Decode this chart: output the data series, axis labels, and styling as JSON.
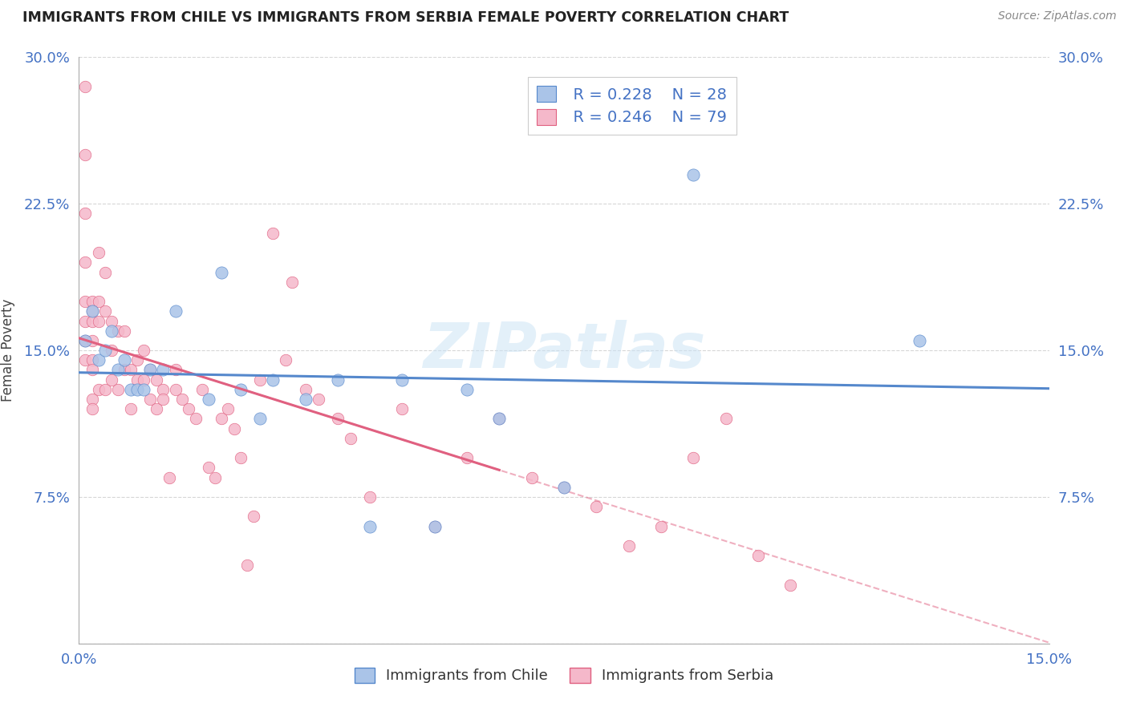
{
  "title": "IMMIGRANTS FROM CHILE VS IMMIGRANTS FROM SERBIA FEMALE POVERTY CORRELATION CHART",
  "source": "Source: ZipAtlas.com",
  "ylabel": "Female Poverty",
  "xlim": [
    0.0,
    0.15
  ],
  "ylim": [
    0.0,
    0.3
  ],
  "xticks": [
    0.0,
    0.05,
    0.1,
    0.15
  ],
  "xtick_labels": [
    "0.0%",
    "",
    "",
    "15.0%"
  ],
  "yticks": [
    0.0,
    0.075,
    0.15,
    0.225,
    0.3
  ],
  "ytick_labels": [
    "",
    "7.5%",
    "15.0%",
    "22.5%",
    "30.0%"
  ],
  "legend_r_chile": "R = 0.228",
  "legend_n_chile": "N = 28",
  "legend_r_serbia": "R = 0.246",
  "legend_n_serbia": "N = 79",
  "color_chile": "#aac4e8",
  "color_serbia": "#f5b8ca",
  "line_color_chile": "#5588cc",
  "line_color_serbia": "#e06080",
  "text_color_blue": "#4472c4",
  "watermark": "ZIPatlas",
  "chile_x": [
    0.001,
    0.002,
    0.003,
    0.004,
    0.005,
    0.006,
    0.007,
    0.008,
    0.009,
    0.01,
    0.011,
    0.013,
    0.015,
    0.02,
    0.022,
    0.025,
    0.028,
    0.03,
    0.035,
    0.04,
    0.045,
    0.05,
    0.055,
    0.06,
    0.065,
    0.075,
    0.095,
    0.13
  ],
  "chile_y": [
    0.155,
    0.17,
    0.145,
    0.15,
    0.16,
    0.14,
    0.145,
    0.13,
    0.13,
    0.13,
    0.14,
    0.14,
    0.17,
    0.125,
    0.19,
    0.13,
    0.115,
    0.135,
    0.125,
    0.135,
    0.06,
    0.135,
    0.06,
    0.13,
    0.115,
    0.08,
    0.24,
    0.155
  ],
  "serbia_x": [
    0.001,
    0.001,
    0.001,
    0.001,
    0.001,
    0.001,
    0.001,
    0.001,
    0.002,
    0.002,
    0.002,
    0.002,
    0.002,
    0.002,
    0.002,
    0.002,
    0.003,
    0.003,
    0.003,
    0.003,
    0.004,
    0.004,
    0.004,
    0.005,
    0.005,
    0.005,
    0.006,
    0.006,
    0.007,
    0.007,
    0.008,
    0.008,
    0.009,
    0.009,
    0.01,
    0.01,
    0.011,
    0.011,
    0.012,
    0.012,
    0.013,
    0.013,
    0.014,
    0.015,
    0.015,
    0.016,
    0.017,
    0.018,
    0.019,
    0.02,
    0.021,
    0.022,
    0.023,
    0.024,
    0.025,
    0.026,
    0.027,
    0.028,
    0.03,
    0.032,
    0.033,
    0.035,
    0.037,
    0.04,
    0.042,
    0.045,
    0.05,
    0.055,
    0.06,
    0.065,
    0.07,
    0.075,
    0.08,
    0.085,
    0.09,
    0.095,
    0.1,
    0.105,
    0.11
  ],
  "serbia_y": [
    0.285,
    0.25,
    0.22,
    0.195,
    0.175,
    0.165,
    0.155,
    0.145,
    0.175,
    0.17,
    0.165,
    0.155,
    0.145,
    0.14,
    0.125,
    0.12,
    0.2,
    0.175,
    0.165,
    0.13,
    0.19,
    0.17,
    0.13,
    0.165,
    0.15,
    0.135,
    0.16,
    0.13,
    0.16,
    0.14,
    0.14,
    0.12,
    0.145,
    0.135,
    0.15,
    0.135,
    0.14,
    0.125,
    0.135,
    0.12,
    0.13,
    0.125,
    0.085,
    0.14,
    0.13,
    0.125,
    0.12,
    0.115,
    0.13,
    0.09,
    0.085,
    0.115,
    0.12,
    0.11,
    0.095,
    0.04,
    0.065,
    0.135,
    0.21,
    0.145,
    0.185,
    0.13,
    0.125,
    0.115,
    0.105,
    0.075,
    0.12,
    0.06,
    0.095,
    0.115,
    0.085,
    0.08,
    0.07,
    0.05,
    0.06,
    0.095,
    0.115,
    0.045,
    0.03
  ]
}
